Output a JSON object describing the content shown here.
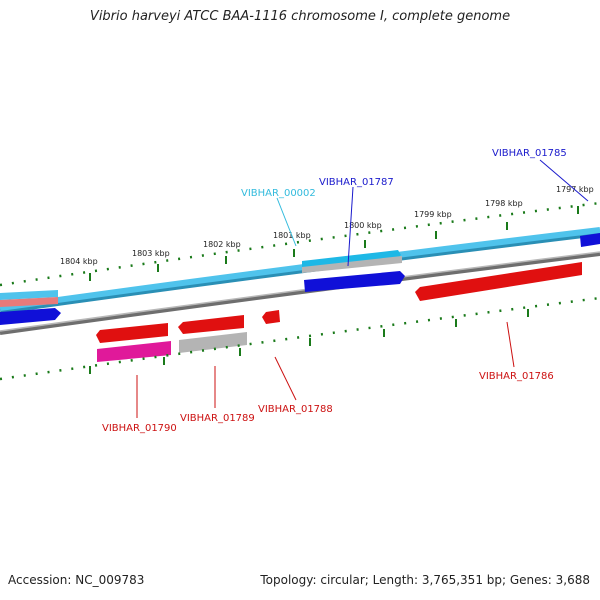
{
  "title": "Vibrio harveyi ATCC BAA-1116 chromosome I, complete genome",
  "footer": {
    "accession": "Accession: NC_009783",
    "summary": "Topology: circular; Length: 3,765,351 bp; Genes: 3,688"
  },
  "scale_labels": [
    "1804 kbp",
    "1803 kbp",
    "1802 kbp",
    "1801 kbp",
    "1800 kbp",
    "1799 kbp",
    "1798 kbp",
    "1797 kbp"
  ],
  "gene_labels": {
    "vibhar_00002": "VIBHAR_00002",
    "vibhar_01787": "VIBHAR_01787",
    "vibhar_01785": "VIBHAR_01785",
    "vibhar_01786": "VIBHAR_01786",
    "vibhar_01788": "VIBHAR_01788",
    "vibhar_01789": "VIBHAR_01789",
    "vibhar_01790": "VIBHAR_01790"
  },
  "colors": {
    "backbone_cyan": "#4fc3ec",
    "backbone_grey": "#8c8c8c",
    "gene_blue": "#1010d8",
    "gene_cyan": "#1eb8e6",
    "gene_red": "#e01010",
    "gene_magenta": "#e0199a",
    "gene_grey": "#b4b4b4",
    "tick_green": "#1a7a1a",
    "label_red": "#cc1111",
    "label_blue": "#1a1acc",
    "label_cyan": "#33bbdd"
  }
}
